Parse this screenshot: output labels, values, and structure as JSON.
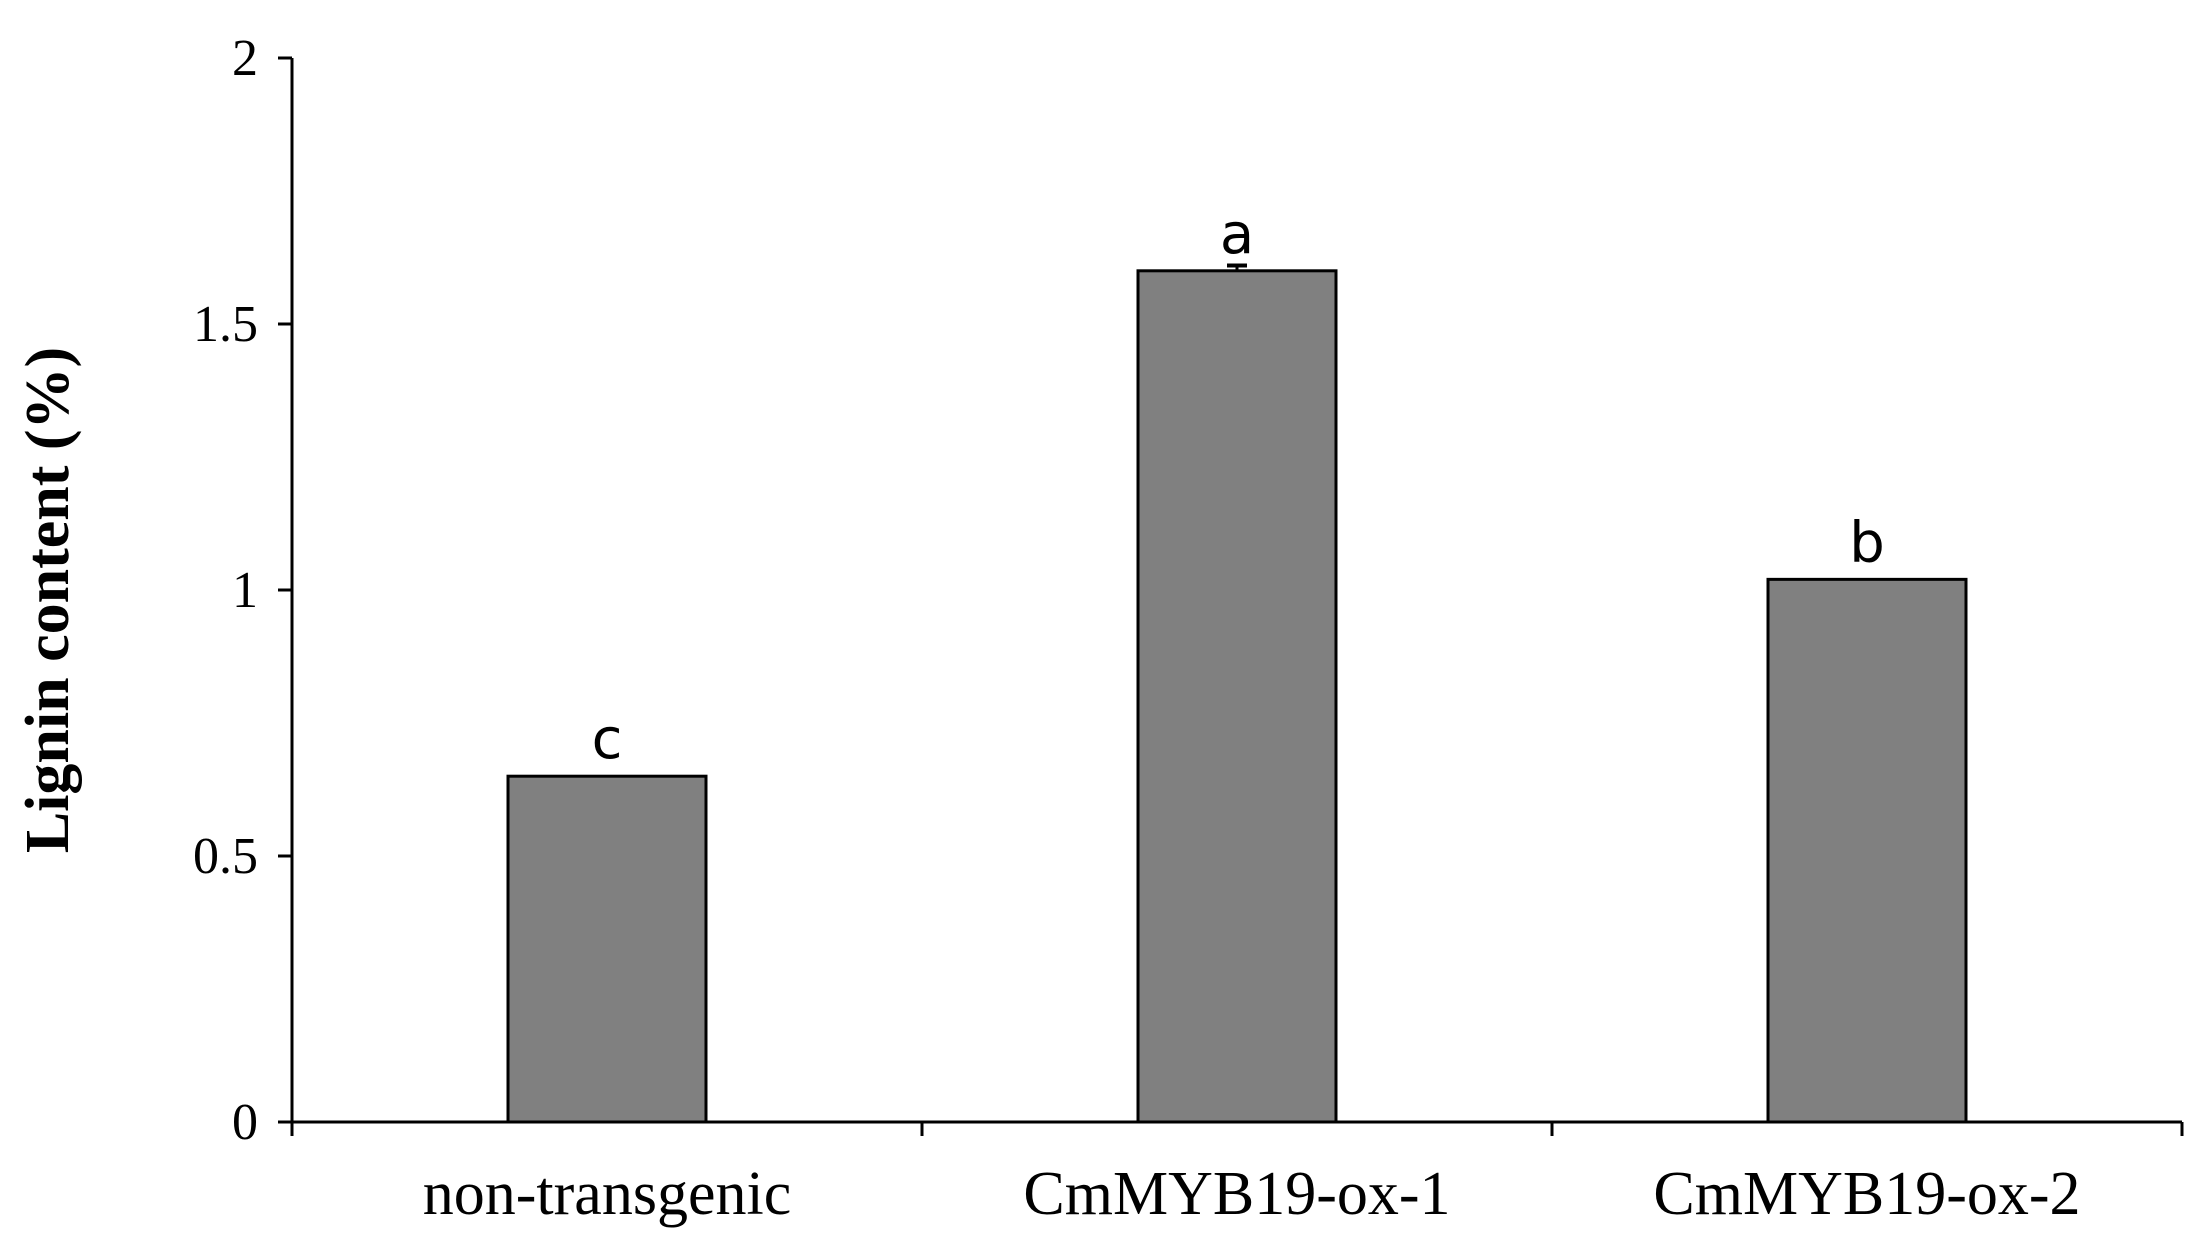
{
  "chart_data": {
    "type": "bar",
    "categories": [
      "non-transgenic",
      "CmMYB19-ox-1",
      "CmMYB19-ox-2"
    ],
    "values": [
      0.65,
      1.6,
      1.02
    ],
    "errors": [
      0.0,
      0.01,
      0.0
    ],
    "significance": [
      "c",
      "a",
      "b"
    ],
    "title": "",
    "xlabel": "",
    "ylabel": "Lignin content (%)",
    "ylim": [
      0,
      2
    ],
    "yticks": [
      0,
      0.5,
      1,
      1.5,
      2
    ],
    "ytick_labels": [
      "0",
      "0.5",
      "1",
      "1.5",
      "2"
    ],
    "grid": false,
    "bar_color": "#808080",
    "bar_edge_color": "#000000"
  }
}
